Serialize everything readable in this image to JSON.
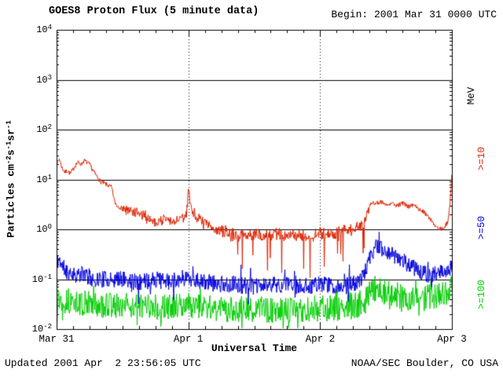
{
  "header": {
    "title": "GOES8 Proton Flux (5 minute data)",
    "begin": "Begin: 2001 Mar 31 0000 UTC"
  },
  "footer": {
    "updated": "Updated 2001 Apr  2 23:56:05 UTC",
    "source": "NOAA/SEC Boulder, CO USA"
  },
  "chart_data": {
    "type": "line",
    "title": "GOES8 Proton Flux (5 minute data)",
    "begin_label": "Begin: 2001 Mar 31 0000 UTC",
    "legend_position": "right",
    "grid": {
      "h_lines_exp": [
        3,
        2,
        1,
        0,
        -1
      ],
      "v_dotted_hours": [
        24,
        48
      ]
    },
    "x_axis": {
      "label": "Universal Time",
      "range_hours": [
        0,
        72
      ],
      "minor_tick_every_hours": 3,
      "ticks": [
        {
          "hours": 0,
          "label": "Mar 31"
        },
        {
          "hours": 24,
          "label": "Apr 1"
        },
        {
          "hours": 48,
          "label": "Apr 2"
        },
        {
          "hours": 72,
          "label": "Apr 3"
        }
      ]
    },
    "y_axis": {
      "base": "10",
      "tick_exps": [
        4,
        3,
        2,
        1,
        0,
        -1,
        -2
      ],
      "log_range_exp": [
        -2,
        4
      ],
      "label_parts": [
        {
          "t": "Particles cm"
        },
        {
          "t": "-2",
          "sup": true
        },
        {
          "t": "s"
        },
        {
          "t": "-1",
          "sup": true
        },
        {
          "t": "sr"
        },
        {
          "t": "-1",
          "sup": true
        }
      ]
    },
    "right_labels": [
      {
        "text": "MeV",
        "color": "#000000"
      },
      {
        "text": ">=10",
        "color": "#dd2200"
      },
      {
        "text": ">=50",
        "color": "#0000dd"
      },
      {
        "text": ">=100",
        "color": "#00cc00"
      }
    ],
    "series": [
      {
        "name": ">=100 MeV",
        "threshold": ">=100",
        "unit": "MeV",
        "color": "#00cc00",
        "seed": 13,
        "noise_dex": 0.26,
        "spike_prob": 0.08,
        "spike_dex": 0.35,
        "clip_min": 0.0105,
        "anchors_hours_value": [
          [
            0,
            0.04
          ],
          [
            2,
            0.036
          ],
          [
            4,
            0.034
          ],
          [
            6,
            0.032
          ],
          [
            8,
            0.03
          ],
          [
            12,
            0.03
          ],
          [
            16,
            0.028
          ],
          [
            20,
            0.028
          ],
          [
            24,
            0.03
          ],
          [
            28,
            0.026
          ],
          [
            32,
            0.025
          ],
          [
            36,
            0.025
          ],
          [
            40,
            0.024
          ],
          [
            44,
            0.024
          ],
          [
            48,
            0.026
          ],
          [
            52,
            0.026
          ],
          [
            55,
            0.03
          ],
          [
            56,
            0.035
          ],
          [
            57,
            0.055
          ],
          [
            58,
            0.065
          ],
          [
            59,
            0.06
          ],
          [
            60,
            0.055
          ],
          [
            61,
            0.05
          ],
          [
            62,
            0.048
          ],
          [
            63,
            0.045
          ],
          [
            64,
            0.042
          ],
          [
            66,
            0.04
          ],
          [
            68,
            0.045
          ],
          [
            70,
            0.05
          ],
          [
            71,
            0.055
          ],
          [
            72,
            0.065
          ]
        ]
      },
      {
        "name": ">=50 MeV",
        "threshold": ">=50",
        "unit": "MeV",
        "color": "#0000dd",
        "seed": 11,
        "noise_dex": 0.17,
        "spike_prob": 0.07,
        "spike_dex": 0.3,
        "anchors_hours_value": [
          [
            0,
            0.22
          ],
          [
            0.5,
            0.25
          ],
          [
            1,
            0.18
          ],
          [
            2,
            0.14
          ],
          [
            3,
            0.13
          ],
          [
            4,
            0.12
          ],
          [
            5,
            0.13
          ],
          [
            6,
            0.11
          ],
          [
            8,
            0.1
          ],
          [
            10,
            0.1
          ],
          [
            12,
            0.1
          ],
          [
            14,
            0.09
          ],
          [
            16,
            0.09
          ],
          [
            18,
            0.1
          ],
          [
            20,
            0.09
          ],
          [
            22,
            0.1
          ],
          [
            24,
            0.11
          ],
          [
            26,
            0.09
          ],
          [
            28,
            0.085
          ],
          [
            30,
            0.08
          ],
          [
            32,
            0.08
          ],
          [
            34,
            0.075
          ],
          [
            36,
            0.07
          ],
          [
            38,
            0.075
          ],
          [
            40,
            0.08
          ],
          [
            42,
            0.075
          ],
          [
            44,
            0.07
          ],
          [
            46,
            0.075
          ],
          [
            48,
            0.08
          ],
          [
            50,
            0.075
          ],
          [
            52,
            0.07
          ],
          [
            54,
            0.08
          ],
          [
            55,
            0.09
          ],
          [
            56,
            0.12
          ],
          [
            57,
            0.25
          ],
          [
            57.5,
            0.35
          ],
          [
            58,
            0.42
          ],
          [
            58.5,
            0.45
          ],
          [
            59,
            0.42
          ],
          [
            60,
            0.38
          ],
          [
            61,
            0.33
          ],
          [
            62,
            0.28
          ],
          [
            63,
            0.24
          ],
          [
            64,
            0.2
          ],
          [
            65,
            0.17
          ],
          [
            66,
            0.15
          ],
          [
            67,
            0.13
          ],
          [
            68,
            0.12
          ],
          [
            69,
            0.13
          ],
          [
            70,
            0.14
          ],
          [
            71,
            0.15
          ],
          [
            72,
            0.17
          ]
        ]
      },
      {
        "name": ">=10 MeV",
        "threshold": ">=10",
        "unit": "MeV",
        "color": "#dd2200",
        "seed": 7,
        "noise_dex": 0.045,
        "noisy_hours": [
          12,
          57
        ],
        "noisy_extra_dex": 0.1,
        "dip_hours": [
          26,
          56
        ],
        "dip_prob": 0.06,
        "dip_dex": 0.8,
        "anchors_hours_value": [
          [
            0,
            20
          ],
          [
            0.5,
            26
          ],
          [
            1,
            17
          ],
          [
            1.5,
            14
          ],
          [
            2,
            15
          ],
          [
            2.5,
            13
          ],
          [
            3,
            16
          ],
          [
            3.5,
            20
          ],
          [
            4,
            22
          ],
          [
            4.5,
            20
          ],
          [
            5,
            24
          ],
          [
            5.5,
            22
          ],
          [
            6,
            20
          ],
          [
            6.5,
            16
          ],
          [
            7,
            13
          ],
          [
            7.5,
            11
          ],
          [
            8,
            9
          ],
          [
            8.5,
            8.5
          ],
          [
            9,
            8
          ],
          [
            9.5,
            7.5
          ],
          [
            10,
            7
          ],
          [
            10.3,
            5
          ],
          [
            10.6,
            3.5
          ],
          [
            11,
            3
          ],
          [
            12,
            2.6
          ],
          [
            13,
            2.3
          ],
          [
            14,
            2.1
          ],
          [
            15,
            2.0
          ],
          [
            16,
            1.8
          ],
          [
            17,
            1.6
          ],
          [
            18,
            1.4
          ],
          [
            19,
            1.5
          ],
          [
            20,
            1.6
          ],
          [
            21,
            1.4
          ],
          [
            22,
            1.5
          ],
          [
            23,
            1.6
          ],
          [
            23.7,
            2.2
          ],
          [
            24,
            6.5
          ],
          [
            24.3,
            3.5
          ],
          [
            24.8,
            2.2
          ],
          [
            25.5,
            1.8
          ],
          [
            26,
            1.6
          ],
          [
            27,
            1.3
          ],
          [
            28,
            1.15
          ],
          [
            29,
            1.0
          ],
          [
            30,
            0.95
          ],
          [
            31,
            0.85
          ],
          [
            32,
            0.8
          ],
          [
            34,
            0.75
          ],
          [
            36,
            0.8
          ],
          [
            38,
            0.7
          ],
          [
            40,
            0.8
          ],
          [
            42,
            0.75
          ],
          [
            44,
            0.8
          ],
          [
            46,
            0.7
          ],
          [
            48,
            0.85
          ],
          [
            50,
            0.8
          ],
          [
            52,
            0.9
          ],
          [
            54,
            1.0
          ],
          [
            55,
            1.1
          ],
          [
            56,
            1.4
          ],
          [
            56.5,
            2.0
          ],
          [
            57,
            3.0
          ],
          [
            57.5,
            3.6
          ],
          [
            58,
            3.3
          ],
          [
            59,
            3.6
          ],
          [
            60,
            3.2
          ],
          [
            61,
            3.4
          ],
          [
            62,
            3.0
          ],
          [
            63,
            3.3
          ],
          [
            64,
            2.9
          ],
          [
            65,
            3.0
          ],
          [
            66,
            2.6
          ],
          [
            67,
            2.2
          ],
          [
            68,
            1.6
          ],
          [
            69,
            1.2
          ],
          [
            70,
            1.0
          ],
          [
            70.7,
            1.1
          ],
          [
            71.3,
            1.5
          ],
          [
            71.7,
            4
          ],
          [
            72,
            14
          ]
        ]
      }
    ]
  }
}
